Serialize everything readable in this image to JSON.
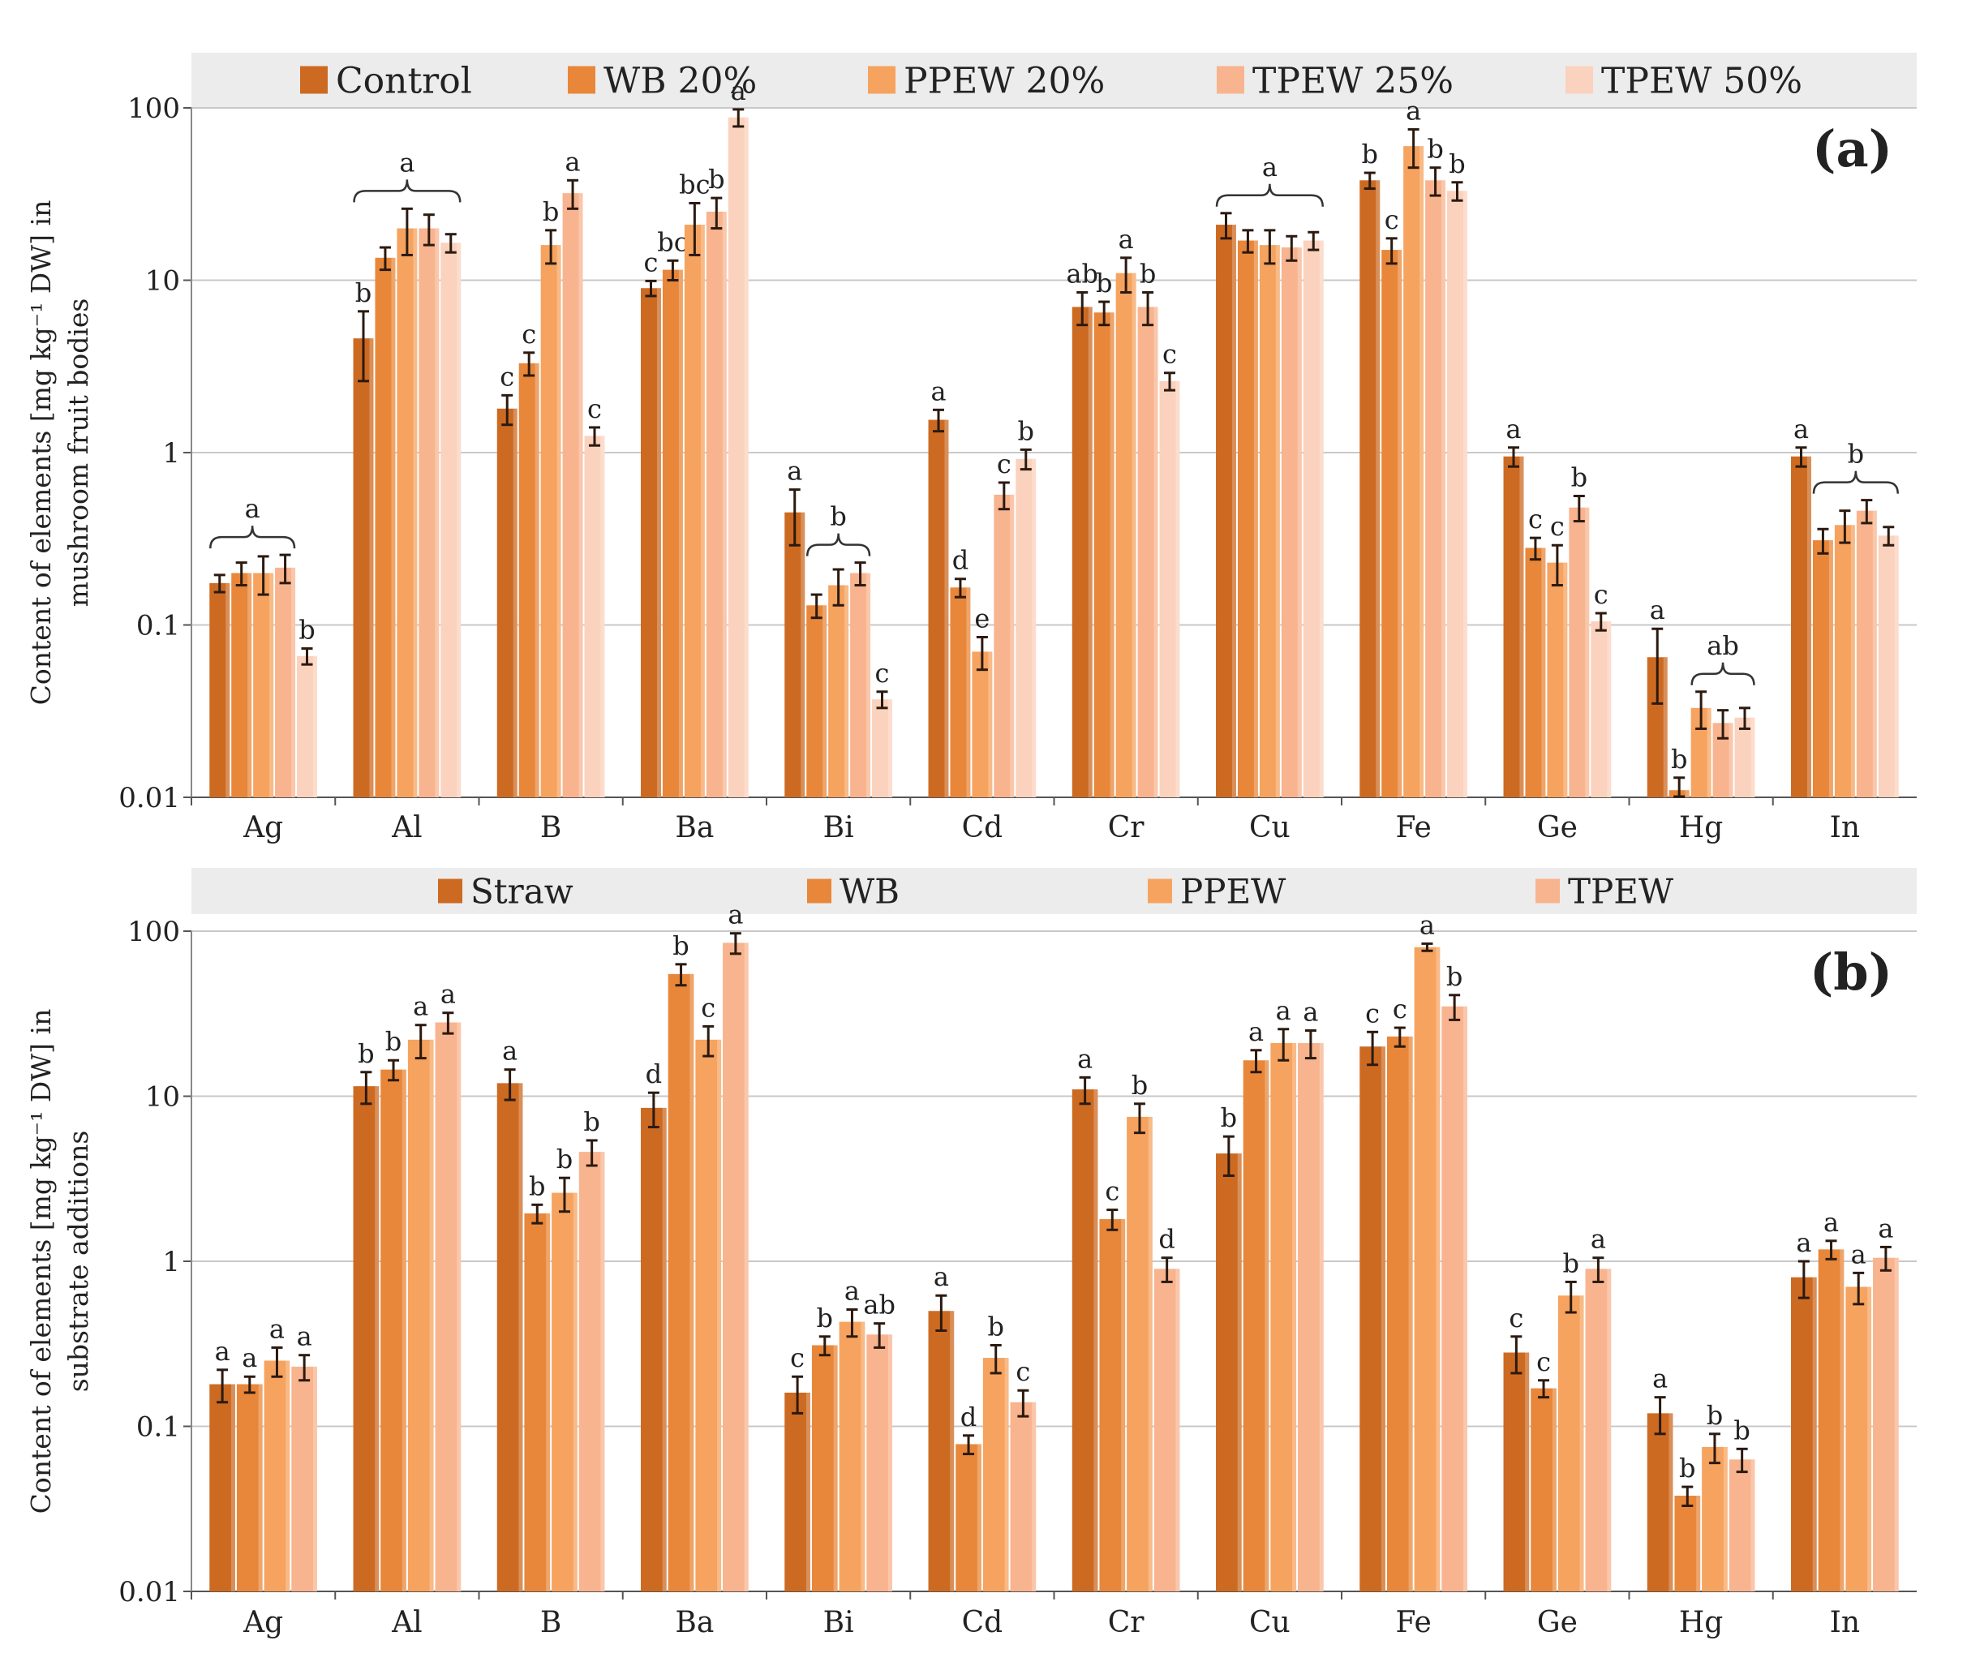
{
  "colors": [
    "#cd6a22",
    "#e8873a",
    "#f6a35f",
    "#f8b48f",
    "#fbd2bd"
  ],
  "chart_data": [
    {
      "type": "bar",
      "panel_label": "(a)",
      "ylabel_lines": [
        "Content of elements [mg kg⁻¹ DW] in",
        "mushroom fruit bodies"
      ],
      "yscale": "log",
      "ylim": [
        0.01,
        100
      ],
      "yticks": [
        {
          "value": 100,
          "label": "100"
        },
        {
          "value": 10,
          "label": "10"
        },
        {
          "value": 1,
          "label": "1"
        },
        {
          "value": 0.1,
          "label": "0.1"
        },
        {
          "value": 0.01,
          "label": "0.01"
        }
      ],
      "legend_position": "top",
      "categories": [
        "Ag",
        "Al",
        "B",
        "Ba",
        "Bi",
        "Cd",
        "Cr",
        "Cu",
        "Fe",
        "Ge",
        "Hg",
        "In"
      ],
      "series": [
        {
          "name": "Control",
          "values": [
            0.175,
            4.6,
            1.8,
            9.0,
            0.45,
            1.55,
            7.0,
            21.0,
            38.0,
            0.95,
            0.065,
            0.95
          ],
          "errors": [
            0.02,
            2.0,
            0.35,
            0.9,
            0.16,
            0.22,
            1.5,
            3.5,
            4.0,
            0.12,
            0.03,
            0.12
          ],
          "letters": [
            "",
            "b",
            "c",
            "c",
            "a",
            "a",
            "ab",
            "",
            "b",
            "a",
            "a",
            "a"
          ]
        },
        {
          "name": "WB 20%",
          "values": [
            0.2,
            13.5,
            3.3,
            11.5,
            0.13,
            0.165,
            6.5,
            17.0,
            15.0,
            0.28,
            0.011,
            0.31
          ],
          "errors": [
            0.03,
            2.0,
            0.5,
            1.5,
            0.02,
            0.02,
            1.0,
            2.5,
            2.5,
            0.04,
            0.002,
            0.05
          ],
          "letters": [
            "",
            "",
            "c",
            "bc",
            "",
            "d",
            "b",
            "",
            "c",
            "c",
            "b",
            ""
          ]
        },
        {
          "name": "PPEW 20%",
          "values": [
            0.2,
            20.0,
            16.0,
            21.0,
            0.17,
            0.07,
            11.0,
            16.0,
            60.0,
            0.23,
            0.033,
            0.38
          ],
          "errors": [
            0.05,
            6.0,
            3.5,
            7.0,
            0.04,
            0.015,
            2.5,
            3.5,
            15.0,
            0.06,
            0.008,
            0.08
          ],
          "letters": [
            "",
            "",
            "b",
            "bc",
            "",
            "e",
            "a",
            "",
            "a",
            "c",
            "",
            ""
          ]
        },
        {
          "name": "TPEW 25%",
          "values": [
            0.215,
            20.0,
            32.0,
            25.0,
            0.2,
            0.57,
            7.0,
            15.5,
            38.0,
            0.48,
            0.027,
            0.46
          ],
          "errors": [
            0.04,
            4.0,
            6.0,
            5.0,
            0.03,
            0.1,
            1.5,
            2.5,
            7.0,
            0.08,
            0.005,
            0.07
          ],
          "letters": [
            "",
            "",
            "a",
            "b",
            "",
            "c",
            "b",
            "",
            "b",
            "b",
            "",
            ""
          ]
        },
        {
          "name": "TPEW 50%",
          "values": [
            0.066,
            16.5,
            1.25,
            88.0,
            0.037,
            0.92,
            2.6,
            17.0,
            33.0,
            0.105,
            0.029,
            0.33
          ],
          "errors": [
            0.007,
            2.0,
            0.15,
            10.0,
            0.004,
            0.12,
            0.3,
            2.0,
            4.0,
            0.012,
            0.004,
            0.04
          ],
          "letters": [
            "b",
            "",
            "c",
            "a",
            "c",
            "b",
            "c",
            "",
            "b",
            "c",
            "",
            ""
          ]
        }
      ],
      "group_letters": [
        {
          "category": "Ag",
          "series_from": 0,
          "series_to": 3,
          "letter": "a"
        },
        {
          "category": "Al",
          "series_from": 0,
          "series_to": 4,
          "letter": "a"
        },
        {
          "category": "Bi",
          "series_from": 1,
          "series_to": 3,
          "letter": "b"
        },
        {
          "category": "Cu",
          "series_from": 0,
          "series_to": 4,
          "letter": "a"
        },
        {
          "category": "Hg",
          "series_from": 2,
          "series_to": 4,
          "letter": "ab"
        },
        {
          "category": "In",
          "series_from": 1,
          "series_to": 4,
          "letter": "b"
        }
      ]
    },
    {
      "type": "bar",
      "panel_label": "(b)",
      "ylabel_lines": [
        "Content of elements [mg kg⁻¹ DW] in",
        "substrate additions"
      ],
      "yscale": "log",
      "ylim": [
        0.01,
        100
      ],
      "yticks": [
        {
          "value": 100,
          "label": "100"
        },
        {
          "value": 10,
          "label": "10"
        },
        {
          "value": 1,
          "label": "1"
        },
        {
          "value": 0.1,
          "label": "0.1"
        },
        {
          "value": 0.01,
          "label": "0.01"
        }
      ],
      "legend_position": "top",
      "categories": [
        "Ag",
        "Al",
        "B",
        "Ba",
        "Bi",
        "Cd",
        "Cr",
        "Cu",
        "Fe",
        "Ge",
        "Hg",
        "In"
      ],
      "series": [
        {
          "name": "Straw",
          "values": [
            0.18,
            11.5,
            12.0,
            8.5,
            0.16,
            0.5,
            11.0,
            4.5,
            20.0,
            0.28,
            0.12,
            0.8
          ],
          "errors": [
            0.04,
            2.5,
            2.5,
            2.0,
            0.04,
            0.12,
            2.0,
            1.2,
            4.5,
            0.07,
            0.03,
            0.2
          ],
          "letters": [
            "a",
            "b",
            "a",
            "d",
            "c",
            "a",
            "a",
            "b",
            "c",
            "c",
            "a",
            "a"
          ]
        },
        {
          "name": "WB",
          "values": [
            0.18,
            14.5,
            1.95,
            55.0,
            0.31,
            0.078,
            1.8,
            16.5,
            23.0,
            0.17,
            0.038,
            1.18
          ],
          "errors": [
            0.02,
            2.0,
            0.25,
            8.0,
            0.04,
            0.01,
            0.25,
            2.5,
            3.0,
            0.02,
            0.005,
            0.15
          ],
          "letters": [
            "a",
            "b",
            "b",
            "b",
            "b",
            "d",
            "c",
            "a",
            "c",
            "c",
            "b",
            "a"
          ]
        },
        {
          "name": "PPEW",
          "values": [
            0.25,
            22.0,
            2.6,
            22.0,
            0.43,
            0.26,
            7.5,
            21.0,
            80.0,
            0.62,
            0.075,
            0.7
          ],
          "errors": [
            0.05,
            5.0,
            0.6,
            4.5,
            0.08,
            0.05,
            1.5,
            4.5,
            4.0,
            0.13,
            0.015,
            0.15
          ],
          "letters": [
            "a",
            "a",
            "b",
            "c",
            "a",
            "b",
            "b",
            "a",
            "a",
            "b",
            "b",
            "a"
          ]
        },
        {
          "name": "TPEW",
          "values": [
            0.23,
            28.0,
            4.6,
            85.0,
            0.36,
            0.14,
            0.9,
            21.0,
            35.0,
            0.9,
            0.063,
            1.05
          ],
          "errors": [
            0.04,
            4.0,
            0.8,
            12.0,
            0.06,
            0.025,
            0.15,
            4.0,
            6.0,
            0.15,
            0.01,
            0.17
          ],
          "letters": [
            "a",
            "a",
            "b",
            "a",
            "ab",
            "c",
            "d",
            "a",
            "b",
            "a",
            "b",
            "a"
          ]
        }
      ],
      "group_letters": []
    }
  ]
}
